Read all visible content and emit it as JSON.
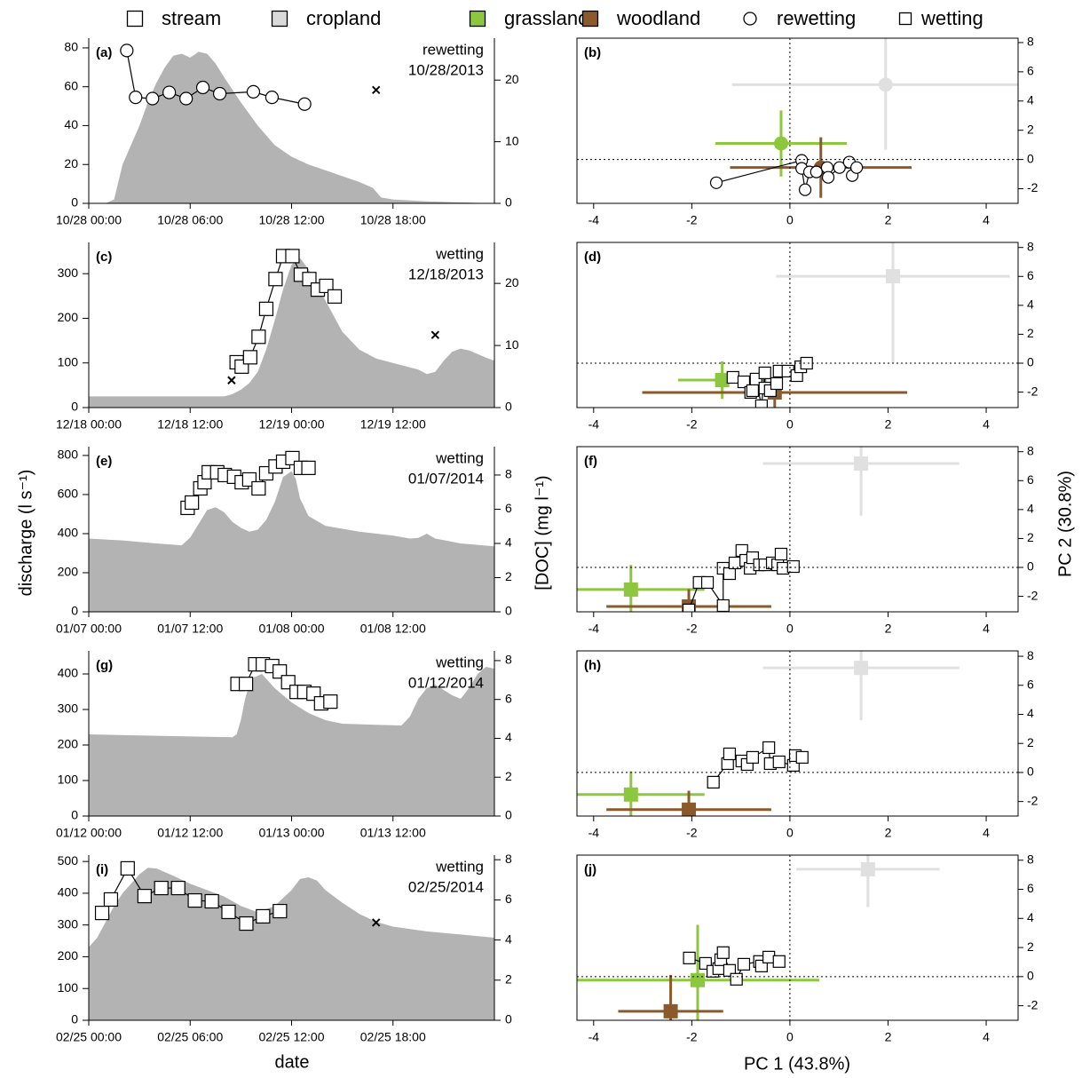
{
  "figure": {
    "legend": [
      {
        "name": "stream",
        "marker": "square",
        "color": "#ffffff"
      },
      {
        "name": "cropland",
        "marker": "square",
        "color": "#d9d9d9"
      },
      {
        "name": "grassland",
        "marker": "square",
        "color": "#8dc63f"
      },
      {
        "name": "woodland",
        "marker": "square",
        "color": "#8b5a2b"
      },
      {
        "name": "rewetting",
        "marker": "circle",
        "color": "#ffffff"
      },
      {
        "name": "wetting",
        "marker": "square",
        "color": "#ffffff"
      }
    ],
    "ylabel": "discharge (l s⁻¹)",
    "y2label": "[DOC] (mg l⁻¹)",
    "xlabel": "date",
    "pc_xlabel": "PC 1 (43.8%)",
    "pc_ylabel": "PC 2 (30.8%)"
  },
  "chart_data": [
    {
      "type": "area",
      "panel_label": "(a)",
      "annotation": [
        "rewetting",
        "10/28/2013"
      ],
      "xlim": [
        0,
        24
      ],
      "xticks": [
        {
          "value": 0,
          "label": "10/28 00:00"
        },
        {
          "value": 6,
          "label": "10/28 06:00"
        },
        {
          "value": 12,
          "label": "10/28 12:00"
        },
        {
          "value": 18,
          "label": "10/28 18:00"
        }
      ],
      "ylim": [
        0,
        85
      ],
      "yticks": [
        0,
        20,
        40,
        60,
        80
      ],
      "y2lim": [
        0,
        26.8
      ],
      "y2ticks": [
        0,
        10,
        20
      ],
      "discharge": {
        "color": "#b3b3b3",
        "x": [
          0,
          1,
          1.5,
          2,
          2.5,
          3,
          3.5,
          4,
          4.5,
          5,
          5.5,
          6,
          6.5,
          7,
          7.5,
          8,
          9,
          10,
          11,
          12,
          13,
          14,
          15,
          16,
          16.8,
          17.3,
          18,
          20,
          22,
          24
        ],
        "values": [
          0,
          0,
          2,
          20,
          30,
          40,
          52,
          62,
          70,
          76,
          77,
          75,
          78,
          77,
          72,
          65,
          52,
          40,
          30,
          24,
          20,
          17,
          14,
          11,
          8,
          3,
          2,
          1,
          0.5,
          0
        ]
      },
      "doc": {
        "marker": "circle",
        "axis": "y2",
        "x": [
          2.25,
          2.77,
          3.77,
          4.76,
          5.76,
          6.75,
          7.75,
          9.74,
          10.84,
          12.77
        ],
        "values": [
          24.8,
          17.2,
          17.0,
          18.0,
          17.0,
          18.8,
          17.8,
          18.1,
          17.2,
          16.1
        ]
      },
      "crosses": {
        "axis": "y2",
        "x": [
          17.0
        ],
        "values": [
          18.4
        ]
      }
    },
    {
      "type": "pca",
      "panel_label": "(b)",
      "xlim": [
        -4.34,
        4.65
      ],
      "xticks": [
        -4,
        -2,
        0,
        2,
        4
      ],
      "ylim": [
        -3,
        8.3
      ],
      "yticks": [
        -2,
        0,
        2,
        4,
        6,
        8
      ],
      "groups": [
        {
          "color": "#e0e0e0",
          "x": 1.95,
          "y": 5.12,
          "xerr": 3.13,
          "yerr": 4.45
        },
        {
          "color": "#8dc63f",
          "x": -0.18,
          "y": 1.1,
          "xerr": 1.34,
          "yerr": 2.26
        },
        {
          "color": "#8b5a2b",
          "x": 0.63,
          "y": -0.55,
          "xerr": 1.85,
          "yerr": 2.07
        }
      ],
      "stream": {
        "marker": "circle",
        "x": [
          -1.5,
          0.24,
          0.24,
          0.31,
          0.4,
          0.54,
          0.76,
          0.78,
          1.01,
          1.21,
          1.27,
          1.36
        ],
        "y": [
          -1.59,
          -0.06,
          -0.61,
          -2.07,
          -0.85,
          -0.85,
          -0.55,
          -1.22,
          -0.55,
          -0.18,
          -1.1,
          -0.55
        ]
      }
    },
    {
      "type": "area",
      "panel_label": "(c)",
      "annotation": [
        "wetting",
        "12/18/2013"
      ],
      "xlim": [
        0,
        48
      ],
      "xticks": [
        {
          "value": 0,
          "label": "12/18 00:00"
        },
        {
          "value": 12,
          "label": "12/18 12:00"
        },
        {
          "value": 24,
          "label": "12/19 00:00"
        },
        {
          "value": 36,
          "label": "12/19 12:00"
        }
      ],
      "ylim": [
        0,
        370
      ],
      "yticks": [
        0,
        100,
        200,
        300
      ],
      "y2lim": [
        0,
        26.6
      ],
      "y2ticks": [
        0,
        10,
        20
      ],
      "discharge": {
        "color": "#b3b3b3",
        "x": [
          0,
          16,
          17,
          18,
          19,
          20,
          21,
          22,
          23,
          24,
          25,
          26,
          27,
          28,
          30,
          32,
          34,
          36,
          38,
          39,
          40,
          41,
          42,
          43,
          44,
          45,
          46,
          47,
          48
        ],
        "values": [
          25,
          25,
          30,
          40,
          55,
          80,
          130,
          195,
          265,
          320,
          335,
          310,
          275,
          240,
          170,
          130,
          110,
          100,
          90,
          85,
          75,
          80,
          105,
          125,
          132,
          128,
          120,
          112,
          105
        ]
      },
      "doc": {
        "marker": "square",
        "axis": "y2",
        "x": [
          17.5,
          18.1,
          19.1,
          20.1,
          21.0,
          22.1,
          23.0,
          24.1,
          25.1,
          26.1,
          27.1,
          28.1,
          29.1
        ],
        "values": [
          7.3,
          6.6,
          8.1,
          11.4,
          15.9,
          20.7,
          24.4,
          24.4,
          21.4,
          20.7,
          19.0,
          19.6,
          17.9
        ]
      },
      "crosses": {
        "axis": "y2",
        "x": [
          16.9,
          41.0
        ],
        "values": [
          4.4,
          11.7
        ]
      }
    },
    {
      "type": "pca",
      "panel_label": "(d)",
      "xlim": [
        -4.34,
        4.65
      ],
      "xticks": [
        -4,
        -2,
        0,
        2,
        4
      ],
      "ylim": [
        -3.07,
        8.35
      ],
      "yticks": [
        -2,
        0,
        2,
        4,
        6,
        8
      ],
      "groups": [
        {
          "color": "#e0e0e0",
          "x": 2.1,
          "y": 6.01,
          "xerr": 2.38,
          "yerr": 6.0
        },
        {
          "color": "#8dc63f",
          "x": -1.38,
          "y": -1.17,
          "xerr": 0.9,
          "yerr": 1.3
        },
        {
          "color": "#8b5a2b",
          "x": -0.31,
          "y": -2.03,
          "xerr": 2.7,
          "yerr": 1.1
        }
      ],
      "stream": {
        "marker": "square",
        "x": [
          -1.16,
          -0.94,
          -0.8,
          -0.76,
          -0.69,
          -0.58,
          -0.51,
          -0.51,
          -0.4,
          -0.27,
          -0.22,
          -0.04,
          0.14,
          0.22,
          0.34
        ],
        "y": [
          -0.98,
          -1.29,
          -2.02,
          -1.9,
          -1.1,
          -2.94,
          -0.67,
          -1.72,
          -1.9,
          -1.41,
          -0.55,
          -0.55,
          -0.86,
          -0.25,
          0.0
        ]
      }
    },
    {
      "type": "area",
      "panel_label": "(e)",
      "annotation": [
        "wetting",
        "01/07/2014"
      ],
      "xlim": [
        0,
        48
      ],
      "xticks": [
        {
          "value": 0,
          "label": "01/07 00:00"
        },
        {
          "value": 12,
          "label": "01/07 12:00"
        },
        {
          "value": 24,
          "label": "01/08 00:00"
        },
        {
          "value": 36,
          "label": "01/08 12:00"
        }
      ],
      "ylim": [
        0,
        845
      ],
      "yticks": [
        0,
        200,
        400,
        600,
        800
      ],
      "y2lim": [
        0,
        9.66
      ],
      "y2ticks": [
        0,
        2,
        4,
        6,
        8
      ],
      "discharge": {
        "color": "#b3b3b3",
        "x": [
          0,
          4,
          8,
          11,
          12,
          13,
          14,
          15,
          16,
          17,
          18,
          19,
          20,
          21,
          22,
          23,
          24,
          24.5,
          25,
          26,
          28,
          32,
          36,
          38,
          39,
          40,
          41,
          44,
          48
        ],
        "values": [
          375,
          365,
          350,
          340,
          380,
          450,
          520,
          535,
          510,
          460,
          430,
          410,
          420,
          470,
          560,
          690,
          720,
          680,
          580,
          490,
          440,
          410,
          390,
          375,
          378,
          400,
          375,
          350,
          335
        ]
      },
      "doc": {
        "marker": "square",
        "axis": "y2",
        "x": [
          11.7,
          12.2,
          13.2,
          13.7,
          14.2,
          15.2,
          16.1,
          17.2,
          18.1,
          19.0,
          20.1,
          21.0,
          22.1,
          23.0,
          24.1,
          25.1,
          26.0
        ],
        "values": [
          6.08,
          6.39,
          7.22,
          7.58,
          8.16,
          8.16,
          8.0,
          7.9,
          7.58,
          7.74,
          7.22,
          8.1,
          8.5,
          8.78,
          8.99,
          8.42,
          8.42
        ]
      }
    },
    {
      "type": "pca",
      "panel_label": "(f)",
      "xlim": [
        -4.34,
        4.65
      ],
      "xticks": [
        -4,
        -2,
        0,
        2,
        4
      ],
      "ylim": [
        -3.07,
        8.35
      ],
      "yticks": [
        -2,
        0,
        2,
        4,
        6,
        8
      ],
      "groups": [
        {
          "color": "#e0e0e0",
          "x": 1.45,
          "y": 7.18,
          "xerr": 2.0,
          "yerr": 3.6
        },
        {
          "color": "#8dc63f",
          "x": -3.24,
          "y": -1.53,
          "xerr": 1.5,
          "yerr": 1.7
        },
        {
          "color": "#8b5a2b",
          "x": -2.06,
          "y": -2.7,
          "xerr": 1.68,
          "yerr": 1.2
        }
      ],
      "stream": {
        "marker": "square",
        "x": [
          -2.06,
          -1.85,
          -1.68,
          -1.36,
          -1.36,
          -1.23,
          -1.12,
          -0.98,
          -0.9,
          -0.81,
          -0.76,
          -0.62,
          -0.51,
          -0.36,
          -0.25,
          -0.18,
          -0.14,
          0.07
        ],
        "y": [
          -2.94,
          -1.04,
          -1.04,
          -2.64,
          -0.06,
          -0.43,
          0.31,
          1.17,
          0.49,
          -0.06,
          0.67,
          0.18,
          0.18,
          0.31,
          0.18,
          0.92,
          -0.06,
          0.06
        ]
      }
    },
    {
      "type": "area",
      "panel_label": "(g)",
      "annotation": [
        "wetting",
        "01/12/2014"
      ],
      "xlim": [
        0,
        48
      ],
      "xticks": [
        {
          "value": 0,
          "label": "01/12 00:00"
        },
        {
          "value": 12,
          "label": "01/12 12:00"
        },
        {
          "value": 24,
          "label": "01/13 00:00"
        },
        {
          "value": 36,
          "label": "01/13 12:00"
        }
      ],
      "ylim": [
        0,
        465
      ],
      "yticks": [
        0,
        100,
        200,
        300,
        400
      ],
      "y2lim": [
        0,
        8.5
      ],
      "y2ticks": [
        0,
        2,
        4,
        6,
        8
      ],
      "discharge": {
        "color": "#b3b3b3",
        "x": [
          0,
          10,
          17,
          17.5,
          18,
          18.5,
          19,
          19.5,
          20.5,
          22,
          24,
          26,
          28,
          30,
          34,
          37,
          38,
          39,
          40,
          41,
          42,
          43,
          44,
          45,
          46,
          47,
          48
        ],
        "values": [
          230,
          225,
          222,
          230,
          270,
          330,
          370,
          390,
          400,
          360,
          320,
          290,
          270,
          260,
          257,
          255,
          280,
          330,
          360,
          370,
          355,
          340,
          330,
          360,
          400,
          420,
          415
        ]
      },
      "doc": {
        "marker": "square",
        "axis": "y2",
        "x": [
          17.6,
          18.6,
          19.7,
          20.6,
          21.7,
          22.6,
          23.6,
          24.6,
          25.5,
          26.6,
          27.5,
          28.6
        ],
        "values": [
          6.8,
          6.8,
          7.81,
          7.81,
          7.72,
          7.44,
          6.89,
          6.39,
          6.39,
          6.3,
          5.8,
          5.89
        ]
      }
    },
    {
      "type": "pca",
      "panel_label": "(h)",
      "xlim": [
        -4.34,
        4.65
      ],
      "xticks": [
        -4,
        -2,
        0,
        2,
        4
      ],
      "ylim": [
        -3,
        8.37
      ],
      "yticks": [
        -2,
        0,
        2,
        4,
        6,
        8
      ],
      "groups": [
        {
          "color": "#e0e0e0",
          "x": 1.45,
          "y": 7.2,
          "xerr": 2.0,
          "yerr": 3.6
        },
        {
          "color": "#8dc63f",
          "x": -3.24,
          "y": -1.52,
          "xerr": 1.5,
          "yerr": 1.6
        },
        {
          "color": "#8b5a2b",
          "x": -2.06,
          "y": -2.56,
          "xerr": 1.68,
          "yerr": 1.3
        }
      ],
      "stream": {
        "marker": "square",
        "x": [
          -1.56,
          -1.27,
          -1.23,
          -0.98,
          -0.87,
          -0.76,
          -0.43,
          -0.4,
          -0.22,
          0.07,
          0.11,
          0.25
        ],
        "y": [
          -0.67,
          0.61,
          1.28,
          0.79,
          0.55,
          1.04,
          1.71,
          0.61,
          0.73,
          0.49,
          1.16,
          1.04
        ]
      }
    },
    {
      "type": "area",
      "panel_label": "(i)",
      "annotation": [
        "wetting",
        "02/25/2014"
      ],
      "xlim": [
        0,
        24
      ],
      "xticks": [
        {
          "value": 0,
          "label": "02/25 00:00"
        },
        {
          "value": 6,
          "label": "02/25 06:00"
        },
        {
          "value": 12,
          "label": "02/25 12:00"
        },
        {
          "value": 18,
          "label": "02/25 18:00"
        }
      ],
      "ylim": [
        0,
        520
      ],
      "yticks": [
        0,
        100,
        200,
        300,
        400,
        500
      ],
      "y2lim": [
        0,
        8.23
      ],
      "y2ticks": [
        0,
        2,
        4,
        6,
        8
      ],
      "discharge": {
        "color": "#b3b3b3",
        "x": [
          0,
          0.5,
          1,
          1.5,
          2,
          2.5,
          3,
          3.5,
          4,
          5,
          6,
          7,
          8,
          9,
          10,
          11,
          12,
          12.5,
          13,
          13.5,
          14,
          15,
          16,
          17,
          18,
          20,
          22,
          24
        ],
        "values": [
          230,
          260,
          310,
          360,
          400,
          430,
          460,
          480,
          478,
          455,
          430,
          410,
          390,
          360,
          340,
          360,
          410,
          445,
          450,
          440,
          410,
          370,
          335,
          310,
          295,
          280,
          270,
          260
        ]
      },
      "doc": {
        "marker": "square",
        "axis": "y2",
        "x": [
          0.79,
          1.31,
          2.3,
          3.3,
          4.29,
          5.29,
          6.28,
          7.28,
          8.27,
          9.32,
          10.31,
          11.31
        ],
        "values": [
          5.35,
          6.02,
          7.57,
          6.19,
          6.59,
          6.59,
          5.97,
          5.93,
          5.4,
          4.82,
          5.18,
          5.44
        ]
      },
      "crosses": {
        "axis": "y2",
        "x": [
          17.0
        ],
        "values": [
          4.87
        ]
      }
    },
    {
      "type": "pca",
      "panel_label": "(j)",
      "xlim": [
        -4.34,
        4.65
      ],
      "xticks": [
        -4,
        -2,
        0,
        2,
        4
      ],
      "ylim": [
        -3,
        8.35
      ],
      "yticks": [
        -2,
        0,
        2,
        4,
        6,
        8
      ],
      "groups": [
        {
          "color": "#e0e0e0",
          "x": 1.59,
          "y": 7.38,
          "xerr": 1.46,
          "yerr": 2.6
        },
        {
          "color": "#8dc63f",
          "x": -1.88,
          "y": -0.24,
          "xerr": 2.48,
          "yerr": 3.8
        },
        {
          "color": "#8b5a2b",
          "x": -2.43,
          "y": -2.38,
          "xerr": 1.07,
          "yerr": 2.5
        }
      ],
      "stream": {
        "marker": "square",
        "x": [
          -2.05,
          -1.72,
          -1.57,
          -1.45,
          -1.41,
          -1.36,
          -1.23,
          -1.09,
          -0.94,
          -0.62,
          -0.58,
          -0.43,
          -0.22
        ],
        "y": [
          1.28,
          0.91,
          0.37,
          0.55,
          1.16,
          1.65,
          0.43,
          -0.18,
          0.85,
          1.04,
          0.73,
          1.34,
          1.04
        ]
      }
    }
  ]
}
